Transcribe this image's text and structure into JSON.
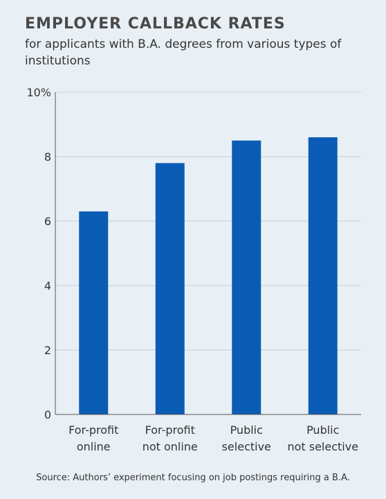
{
  "header": {
    "title": "EMPLOYER CALLBACK RATES",
    "subtitle": "for applicants with B.A. degrees from various types of institutions"
  },
  "footer": {
    "source": "Source: Authors’ experiment focusing on job postings requiring a B.A."
  },
  "colors": {
    "bar": "#0b5cb5",
    "grid": "#c5ced6",
    "axis": "#555555",
    "background": "#e9f0f5"
  },
  "chart_data": {
    "type": "bar",
    "categories": [
      [
        "For-profit",
        "online"
      ],
      [
        "For-profit",
        "not online"
      ],
      [
        "Public",
        "selective"
      ],
      [
        "Public",
        "not selective"
      ]
    ],
    "values": [
      6.3,
      7.8,
      8.5,
      8.6
    ],
    "ylim": [
      0,
      10
    ],
    "yticks": [
      0,
      2,
      4,
      6,
      8,
      10
    ],
    "ytick_labels": [
      "0",
      "2",
      "4",
      "6",
      "8",
      "10%"
    ],
    "grid": true
  }
}
